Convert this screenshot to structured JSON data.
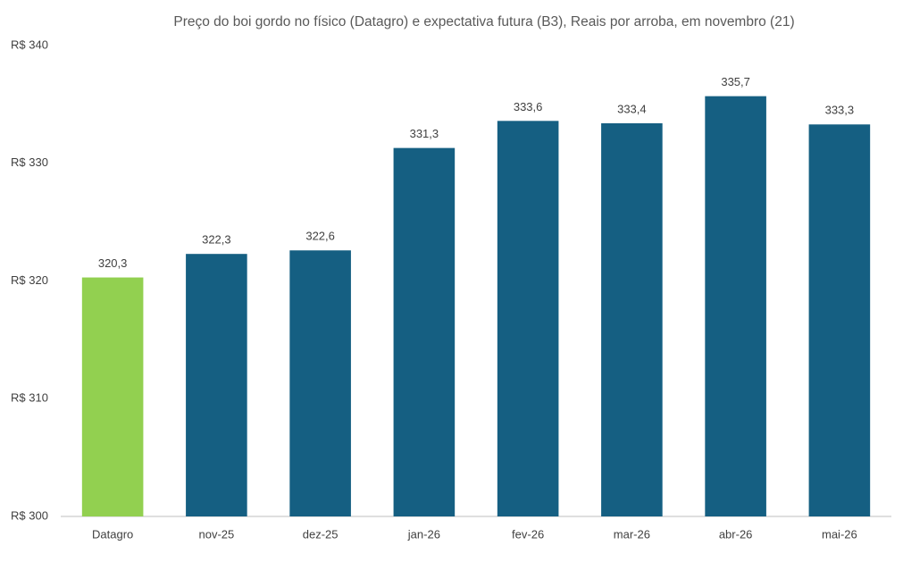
{
  "chart_data": {
    "type": "bar",
    "title": "Preço do boi gordo no físico (Datagro)  e expectativa futura (B3), Reais por arroba, em novembro (21)",
    "categories": [
      "Datagro",
      "nov-25",
      "dez-25",
      "jan-26",
      "fev-26",
      "mar-26",
      "abr-26",
      "mai-26"
    ],
    "values": [
      320.3,
      322.3,
      322.6,
      331.3,
      333.6,
      333.4,
      335.7,
      333.3
    ],
    "value_labels": [
      "320,3",
      "322,3",
      "322,6",
      "331,3",
      "333,6",
      "333,4",
      "335,7",
      "333,3"
    ],
    "colors": [
      "#92d050",
      "#155f82",
      "#155f82",
      "#155f82",
      "#155f82",
      "#155f82",
      "#155f82",
      "#155f82"
    ],
    "ylim": [
      300,
      340
    ],
    "yticks": [
      {
        "value": 300,
        "label": "R$ 300"
      },
      {
        "value": 310,
        "label": "R$ 310"
      },
      {
        "value": 320,
        "label": "R$ 320"
      },
      {
        "value": 330,
        "label": "R$ 330"
      },
      {
        "value": 340,
        "label": "R$ 340"
      }
    ],
    "grid": false
  }
}
